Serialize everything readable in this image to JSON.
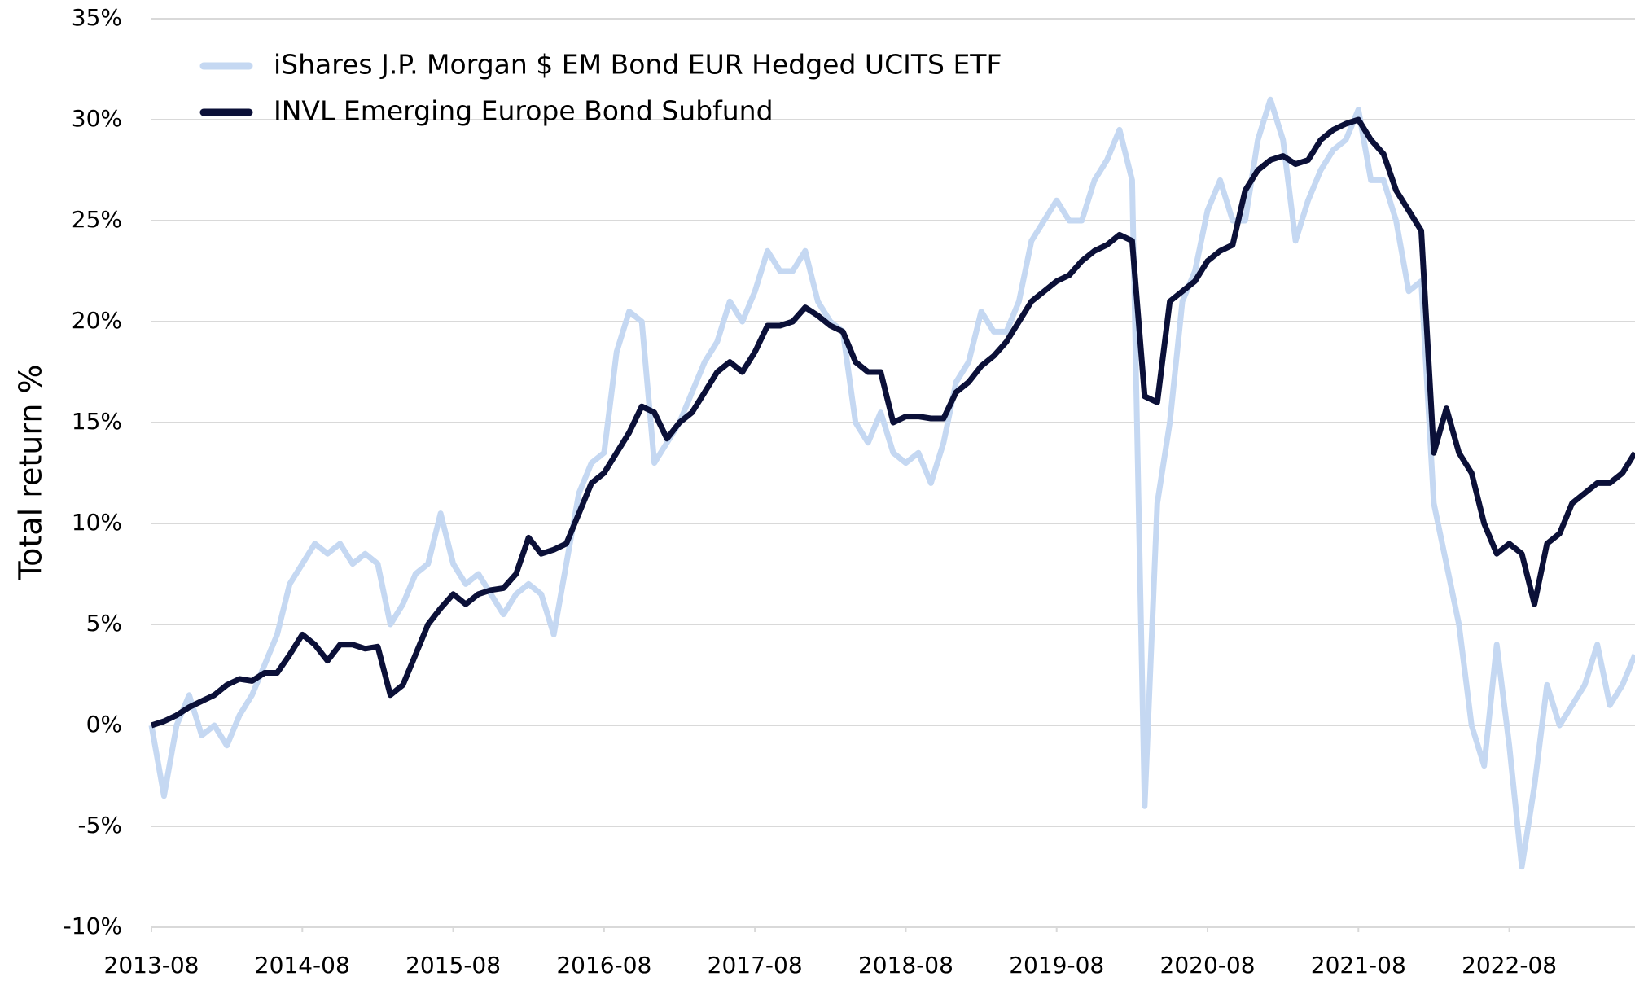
{
  "chart_data": {
    "type": "line",
    "y_label": "Total return %",
    "x": [
      "2013-08",
      "2013-09",
      "2013-10",
      "2013-11",
      "2013-12",
      "2014-01",
      "2014-02",
      "2014-03",
      "2014-04",
      "2014-05",
      "2014-06",
      "2014-07",
      "2014-08",
      "2014-09",
      "2014-10",
      "2014-11",
      "2014-12",
      "2015-01",
      "2015-02",
      "2015-03",
      "2015-04",
      "2015-05",
      "2015-06",
      "2015-07",
      "2015-08",
      "2015-09",
      "2015-10",
      "2015-11",
      "2015-12",
      "2016-01",
      "2016-02",
      "2016-03",
      "2016-04",
      "2016-05",
      "2016-06",
      "2016-07",
      "2016-08",
      "2016-09",
      "2016-10",
      "2016-11",
      "2016-12",
      "2017-01",
      "2017-02",
      "2017-03",
      "2017-04",
      "2017-05",
      "2017-06",
      "2017-07",
      "2017-08",
      "2017-09",
      "2017-10",
      "2017-11",
      "2017-12",
      "2018-01",
      "2018-02",
      "2018-03",
      "2018-04",
      "2018-05",
      "2018-06",
      "2018-07",
      "2018-08",
      "2018-09",
      "2018-10",
      "2018-11",
      "2018-12",
      "2019-01",
      "2019-02",
      "2019-03",
      "2019-04",
      "2019-05",
      "2019-06",
      "2019-07",
      "2019-08",
      "2019-09",
      "2019-10",
      "2019-11",
      "2019-12",
      "2020-01",
      "2020-02",
      "2020-03",
      "2020-04",
      "2020-05",
      "2020-06",
      "2020-07",
      "2020-08",
      "2020-09",
      "2020-10",
      "2020-11",
      "2020-12",
      "2021-01",
      "2021-02",
      "2021-03",
      "2021-04",
      "2021-05",
      "2021-06",
      "2021-07",
      "2021-08",
      "2021-09",
      "2021-10",
      "2021-11",
      "2021-12",
      "2022-01",
      "2022-02",
      "2022-03",
      "2022-04",
      "2022-05",
      "2022-06",
      "2022-07",
      "2022-08",
      "2022-09",
      "2022-10",
      "2022-11",
      "2022-12",
      "2023-01",
      "2023-02",
      "2023-03",
      "2023-04",
      "2023-05",
      "2023-06"
    ],
    "series": [
      {
        "name": "iShares J.P. Morgan $ EM Bond EUR Hedged UCITS ETF",
        "color": "#c5d8f2",
        "width": 7,
        "values": [
          0,
          -3.5,
          0,
          1.5,
          -0.5,
          0,
          -1,
          0.5,
          1.5,
          3,
          4.5,
          7,
          8,
          9,
          8.5,
          9,
          8,
          8.5,
          8,
          5,
          6,
          7.5,
          8,
          10.5,
          8,
          7,
          7.5,
          6.5,
          5.5,
          6.5,
          7,
          6.5,
          4.5,
          8,
          11.5,
          13,
          13.5,
          18.5,
          20.5,
          20,
          13,
          14,
          15,
          16.5,
          18,
          19,
          21,
          20,
          21.5,
          23.5,
          22.5,
          22.5,
          23.5,
          21,
          20,
          19.5,
          15,
          14,
          15.5,
          13.5,
          13,
          13.5,
          12,
          14,
          17,
          18,
          20.5,
          19.5,
          19.5,
          21,
          24,
          25,
          26,
          25,
          25,
          27,
          28,
          29.5,
          27,
          -4,
          11,
          15,
          21,
          22.5,
          25.5,
          27,
          25,
          25,
          29,
          31,
          29,
          24,
          26,
          27.5,
          28.5,
          29,
          30.5,
          27,
          27,
          25,
          21.5,
          22,
          11,
          8,
          5,
          0,
          -2,
          4,
          -1,
          -7,
          -3,
          2,
          0,
          1,
          2,
          4,
          1,
          2,
          3.5
        ]
      },
      {
        "name": "INVL Emerging Europe Bond Subfund",
        "color": "#0b1038",
        "width": 7,
        "values": [
          0,
          0.2,
          0.5,
          0.9,
          1.2,
          1.5,
          2,
          2.3,
          2.2,
          2.6,
          2.6,
          3.5,
          4.5,
          4,
          3.2,
          4,
          4,
          3.8,
          3.9,
          1.5,
          2,
          3.5,
          5,
          5.8,
          6.5,
          6,
          6.5,
          6.7,
          6.8,
          7.5,
          9.3,
          8.5,
          8.7,
          9,
          10.5,
          12,
          12.5,
          13.5,
          14.5,
          15.8,
          15.5,
          14.2,
          15,
          15.5,
          16.5,
          17.5,
          18,
          17.5,
          18.5,
          19.8,
          19.8,
          20,
          20.7,
          20.3,
          19.8,
          19.5,
          18,
          17.5,
          17.5,
          15,
          15.3,
          15.3,
          15.2,
          15.2,
          16.5,
          17,
          17.8,
          18.3,
          19,
          20,
          21,
          21.5,
          22,
          22.3,
          23,
          23.5,
          23.8,
          24.3,
          24,
          16.3,
          16,
          21,
          21.5,
          22,
          23,
          23.5,
          23.8,
          26.5,
          27.5,
          28,
          28.2,
          27.8,
          28,
          29,
          29.5,
          29.8,
          30,
          29,
          28.3,
          26.5,
          25.5,
          24.5,
          13.5,
          15.7,
          13.5,
          12.5,
          10,
          8.5,
          9,
          8.5,
          6,
          9,
          9.5,
          11,
          11.5,
          12,
          12,
          12.5,
          13.5
        ]
      }
    ],
    "xlim": [
      "2013-08",
      "2023-06"
    ],
    "xticks": [
      "2013-08",
      "2014-08",
      "2015-08",
      "2016-08",
      "2017-08",
      "2018-08",
      "2019-08",
      "2020-08",
      "2021-08",
      "2022-08"
    ],
    "ylim": [
      -10,
      35
    ],
    "yticks": [
      {
        "value": -10,
        "label": "-10%"
      },
      {
        "value": -5,
        "label": "-5%"
      },
      {
        "value": 0,
        "label": "0%"
      },
      {
        "value": 5,
        "label": "5%"
      },
      {
        "value": 10,
        "label": "10%"
      },
      {
        "value": 15,
        "label": "15%"
      },
      {
        "value": 20,
        "label": "20%"
      },
      {
        "value": 25,
        "label": "25%"
      },
      {
        "value": 30,
        "label": "30%"
      },
      {
        "value": 35,
        "label": "35%"
      }
    ],
    "grid": true,
    "legend": "top-left"
  }
}
